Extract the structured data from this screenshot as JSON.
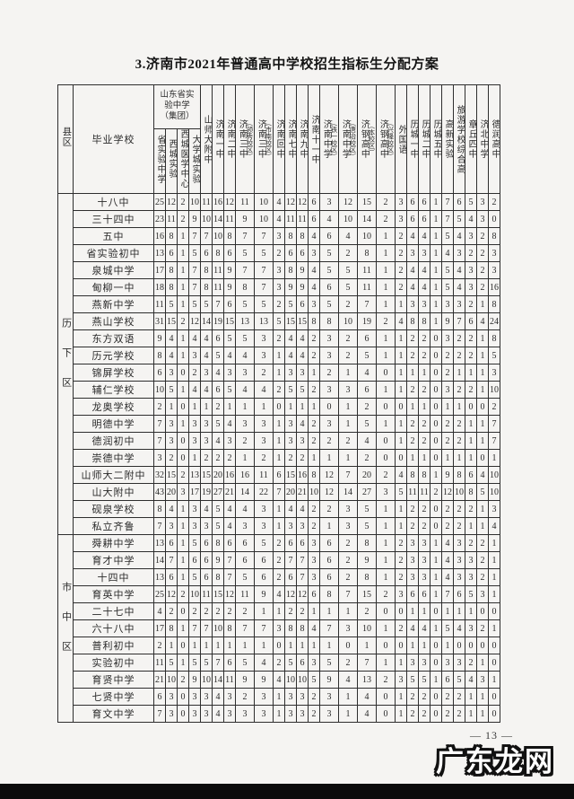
{
  "page": {
    "title": "3.济南市2021年普通高中学校招生指标生分配方案",
    "page_number": "— 13 —",
    "watermark": "广东龙网"
  },
  "table": {
    "corner_district": "县区",
    "corner_school": "毕业学校",
    "group_header": "山东省实验中学（集团）",
    "columns": [
      {
        "label": "省实验中学",
        "group": true
      },
      {
        "label": "西城实验",
        "group": true
      },
      {
        "label": "西城医学中心",
        "group": true
      },
      {
        "label": "大学城实验",
        "group": true
      },
      {
        "label": "山师大附中"
      },
      {
        "label": "济南一中"
      },
      {
        "label": "济南二中"
      },
      {
        "label": "济南三中",
        "paren": "（领秀校区）"
      },
      {
        "label": "济南三中",
        "paren": "（市南校区）"
      },
      {
        "label": "济南回中"
      },
      {
        "label": "济南七中"
      },
      {
        "label": "济南九中"
      },
      {
        "label": "济南十一中"
      },
      {
        "label": "济南中学",
        "paren": "（铁一校区）"
      },
      {
        "label": "济南中学",
        "paren": "（唐冶校区）"
      },
      {
        "label": "济钢高中",
        "paren": "（本校区）"
      },
      {
        "label": "济钢高中",
        "paren": "（兴隆校区）"
      },
      {
        "label": "外国语"
      },
      {
        "label": "历城一中"
      },
      {
        "label": "历城二中"
      },
      {
        "label": "历城五中"
      },
      {
        "label": "高新实验"
      },
      {
        "label": "旅游学校综合高"
      },
      {
        "label": "章丘四中"
      },
      {
        "label": "济北中学"
      },
      {
        "label": "德润高中"
      }
    ],
    "districts": [
      {
        "name": "历下区",
        "rows": [
          {
            "school": "十八中",
            "values": [
              25,
              12,
              2,
              10,
              11,
              16,
              12,
              11,
              10,
              4,
              12,
              12,
              6,
              3,
              12,
              15,
              2,
              3,
              6,
              6,
              1,
              7,
              6,
              5,
              3,
              2
            ]
          },
          {
            "school": "三十四中",
            "values": [
              23,
              11,
              2,
              9,
              10,
              14,
              11,
              9,
              10,
              4,
              11,
              11,
              6,
              4,
              10,
              14,
              2,
              3,
              6,
              6,
              1,
              7,
              5,
              4,
              3,
              0
            ]
          },
          {
            "school": "五中",
            "values": [
              16,
              8,
              1,
              7,
              7,
              10,
              8,
              7,
              7,
              3,
              8,
              8,
              4,
              6,
              4,
              10,
              1,
              2,
              4,
              4,
              1,
              5,
              4,
              3,
              2,
              8
            ]
          },
          {
            "school": "省实验初中",
            "values": [
              13,
              6,
              1,
              5,
              6,
              8,
              6,
              5,
              5,
              2,
              6,
              6,
              3,
              5,
              2,
              8,
              1,
              2,
              3,
              3,
              1,
              4,
              3,
              2,
              2,
              3
            ]
          },
          {
            "school": "泉城中学",
            "values": [
              17,
              8,
              1,
              7,
              8,
              11,
              9,
              7,
              7,
              3,
              8,
              9,
              4,
              5,
              5,
              11,
              1,
              2,
              4,
              4,
              1,
              5,
              4,
              3,
              2,
              3
            ]
          },
          {
            "school": "甸柳一中",
            "values": [
              18,
              8,
              1,
              7,
              8,
              11,
              9,
              8,
              7,
              3,
              9,
              9,
              4,
              6,
              5,
              11,
              1,
              2,
              4,
              4,
              1,
              5,
              4,
              3,
              2,
              16
            ]
          },
          {
            "school": "燕新中学",
            "values": [
              11,
              5,
              1,
              5,
              5,
              7,
              6,
              5,
              5,
              2,
              5,
              6,
              3,
              5,
              2,
              7,
              1,
              1,
              3,
              3,
              1,
              3,
              3,
              2,
              1,
              8
            ]
          },
          {
            "school": "燕山学校",
            "values": [
              31,
              15,
              2,
              12,
              14,
              19,
              15,
              13,
              13,
              5,
              15,
              15,
              8,
              8,
              10,
              19,
              2,
              4,
              8,
              8,
              1,
              9,
              7,
              6,
              4,
              24
            ]
          },
          {
            "school": "东方双语",
            "values": [
              9,
              4,
              1,
              4,
              4,
              6,
              5,
              5,
              3,
              2,
              4,
              4,
              2,
              3,
              2,
              6,
              1,
              1,
              2,
              2,
              0,
              3,
              2,
              2,
              1,
              8
            ]
          },
          {
            "school": "历元学校",
            "values": [
              8,
              4,
              1,
              3,
              4,
              5,
              4,
              4,
              3,
              1,
              4,
              4,
              2,
              3,
              2,
              5,
              1,
              1,
              2,
              2,
              0,
              2,
              2,
              2,
              1,
              5
            ]
          },
          {
            "school": "锦屏学校",
            "values": [
              6,
              3,
              0,
              2,
              3,
              4,
              3,
              3,
              2,
              1,
              3,
              3,
              1,
              2,
              1,
              4,
              0,
              1,
              1,
              1,
              0,
              2,
              1,
              1,
              1,
              3
            ]
          },
          {
            "school": "辅仁学校",
            "values": [
              10,
              5,
              1,
              4,
              4,
              6,
              5,
              4,
              4,
              2,
              5,
              5,
              2,
              3,
              3,
              6,
              1,
              1,
              2,
              2,
              0,
              3,
              2,
              2,
              1,
              10
            ]
          },
          {
            "school": "龙奥学校",
            "values": [
              2,
              1,
              0,
              1,
              1,
              2,
              1,
              1,
              1,
              0,
              1,
              1,
              1,
              0,
              1,
              2,
              0,
              0,
              1,
              1,
              0,
              1,
              1,
              0,
              0,
              2
            ]
          },
          {
            "school": "明德中学",
            "values": [
              7,
              3,
              1,
              3,
              3,
              5,
              4,
              3,
              3,
              1,
              3,
              4,
              2,
              3,
              1,
              5,
              1,
              1,
              2,
              2,
              0,
              2,
              2,
              1,
              1,
              7
            ]
          },
          {
            "school": "德润初中",
            "values": [
              7,
              3,
              0,
              3,
              3,
              4,
              3,
              2,
              3,
              1,
              3,
              3,
              2,
              2,
              2,
              4,
              0,
              1,
              2,
              2,
              0,
              2,
              2,
              1,
              1,
              7
            ]
          },
          {
            "school": "崇德中学",
            "values": [
              3,
              2,
              0,
              1,
              2,
              2,
              2,
              1,
              2,
              1,
              2,
              2,
              1,
              1,
              1,
              2,
              0,
              0,
              1,
              1,
              0,
              1,
              1,
              1,
              0,
              1
            ]
          },
          {
            "school": "山师大二附中",
            "values": [
              32,
              15,
              2,
              13,
              15,
              20,
              16,
              16,
              11,
              6,
              15,
              16,
              8,
              12,
              7,
              20,
              2,
              4,
              8,
              8,
              1,
              9,
              8,
              6,
              4,
              10
            ]
          },
          {
            "school": "山大附中",
            "values": [
              43,
              20,
              3,
              17,
              19,
              27,
              21,
              14,
              22,
              7,
              20,
              21,
              10,
              12,
              14,
              27,
              3,
              5,
              11,
              11,
              2,
              12,
              10,
              8,
              5,
              10
            ]
          },
          {
            "school": "砚泉学校",
            "values": [
              8,
              4,
              1,
              3,
              4,
              5,
              4,
              4,
              3,
              1,
              4,
              4,
              2,
              2,
              3,
              5,
              1,
              1,
              2,
              2,
              0,
              2,
              2,
              2,
              1,
              3
            ]
          },
          {
            "school": "私立齐鲁",
            "values": [
              7,
              3,
              1,
              3,
              3,
              5,
              4,
              3,
              3,
              1,
              3,
              3,
              2,
              1,
              3,
              5,
              1,
              1,
              2,
              2,
              0,
              2,
              2,
              1,
              1,
              4
            ]
          }
        ]
      },
      {
        "name": "市中区",
        "rows": [
          {
            "school": "舜耕中学",
            "values": [
              13,
              6,
              1,
              5,
              6,
              8,
              6,
              6,
              5,
              2,
              6,
              6,
              3,
              6,
              2,
              8,
              1,
              2,
              3,
              3,
              1,
              4,
              3,
              2,
              2,
              1
            ]
          },
          {
            "school": "育才中学",
            "values": [
              14,
              7,
              1,
              6,
              6,
              9,
              7,
              6,
              6,
              2,
              7,
              7,
              3,
              6,
              2,
              9,
              1,
              2,
              3,
              3,
              1,
              4,
              3,
              3,
              2,
              1
            ]
          },
          {
            "school": "十四中",
            "values": [
              13,
              6,
              1,
              5,
              6,
              8,
              7,
              5,
              6,
              2,
              6,
              7,
              3,
              6,
              2,
              8,
              1,
              2,
              3,
              3,
              1,
              4,
              3,
              3,
              2,
              1
            ]
          },
          {
            "school": "育英中学",
            "values": [
              25,
              12,
              2,
              10,
              11,
              15,
              12,
              11,
              9,
              4,
              12,
              12,
              6,
              8,
              7,
              15,
              2,
              3,
              6,
              6,
              1,
              7,
              6,
              5,
              3,
              1
            ]
          },
          {
            "school": "二十七中",
            "values": [
              4,
              2,
              0,
              2,
              2,
              2,
              2,
              2,
              1,
              1,
              2,
              2,
              1,
              1,
              1,
              2,
              0,
              0,
              1,
              1,
              0,
              1,
              1,
              1,
              0,
              0
            ]
          },
          {
            "school": "六十八中",
            "values": [
              17,
              8,
              1,
              7,
              7,
              10,
              8,
              7,
              7,
              3,
              8,
              8,
              4,
              7,
              3,
              10,
              1,
              2,
              4,
              4,
              1,
              5,
              4,
              3,
              2,
              1
            ]
          },
          {
            "school": "普利初中",
            "values": [
              2,
              1,
              0,
              1,
              1,
              1,
              1,
              1,
              1,
              0,
              1,
              1,
              1,
              1,
              0,
              1,
              0,
              0,
              1,
              1,
              0,
              1,
              0,
              0,
              0,
              0
            ]
          },
          {
            "school": "实验初中",
            "values": [
              11,
              5,
              1,
              5,
              5,
              7,
              6,
              5,
              4,
              2,
              5,
              6,
              3,
              5,
              2,
              7,
              1,
              1,
              3,
              3,
              0,
              3,
              3,
              2,
              1,
              0
            ]
          },
          {
            "school": "育贤中学",
            "values": [
              21,
              10,
              2,
              9,
              10,
              14,
              11,
              9,
              9,
              4,
              10,
              10,
              5,
              9,
              4,
              13,
              2,
              3,
              5,
              5,
              1,
              6,
              5,
              4,
              3,
              1
            ]
          },
          {
            "school": "七贤中学",
            "values": [
              6,
              3,
              0,
              3,
              3,
              4,
              3,
              2,
              3,
              1,
              3,
              3,
              2,
              3,
              1,
              4,
              0,
              1,
              2,
              2,
              0,
              2,
              2,
              1,
              1,
              0
            ]
          },
          {
            "school": "育文中学",
            "values": [
              7,
              3,
              0,
              3,
              3,
              4,
              3,
              3,
              3,
              1,
              3,
              3,
              2,
              3,
              1,
              4,
              0,
              1,
              2,
              2,
              0,
              2,
              2,
              1,
              1,
              0
            ]
          }
        ]
      }
    ]
  }
}
